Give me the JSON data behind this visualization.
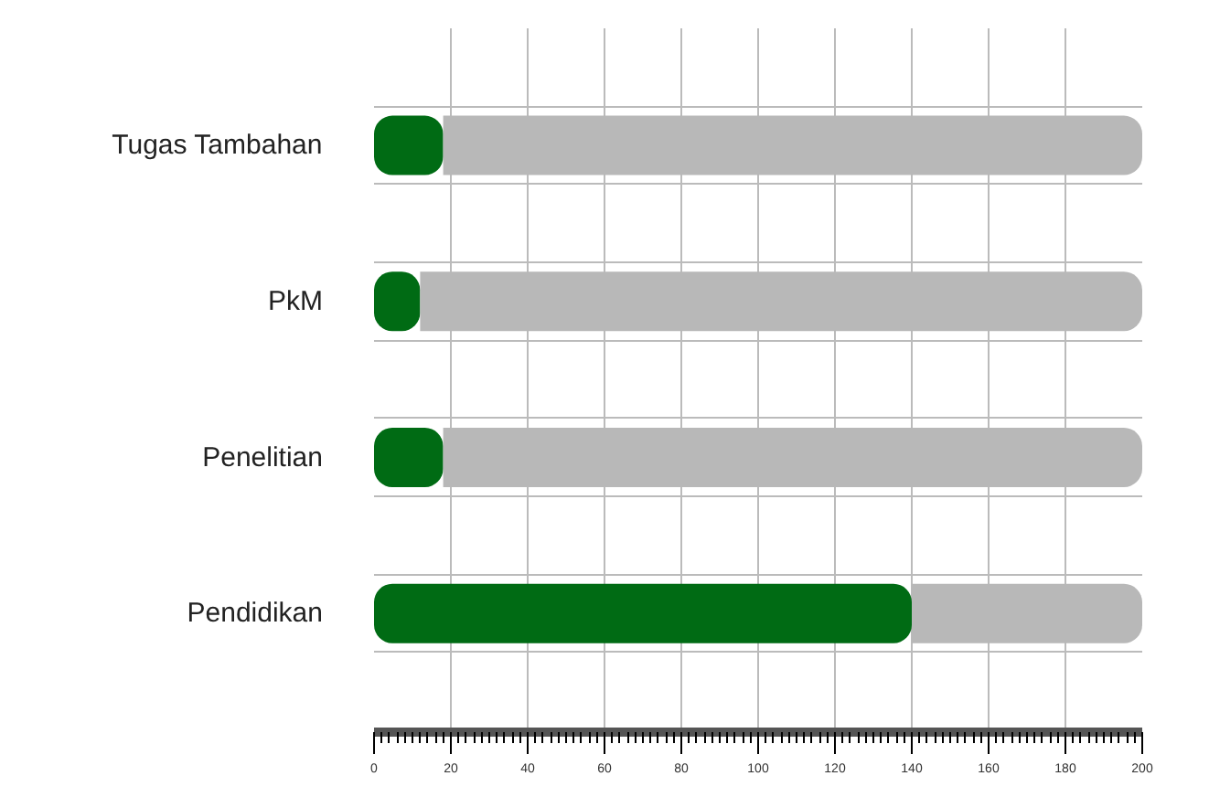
{
  "chart_data": {
    "type": "bar",
    "orientation": "horizontal",
    "stacked": true,
    "categories": [
      "Tugas Tambahan",
      "PkM",
      "Penelitian",
      "Pendidikan"
    ],
    "series": [
      {
        "color": "#006b14",
        "values": [
          18,
          12,
          18,
          140
        ]
      },
      {
        "color": "#b8b8b8",
        "values": [
          182,
          188,
          182,
          60
        ]
      }
    ],
    "xlim": [
      0,
      200
    ],
    "xticks": [
      0,
      20,
      40,
      60,
      80,
      100,
      120,
      140,
      160,
      180,
      200
    ],
    "grid": true
  }
}
